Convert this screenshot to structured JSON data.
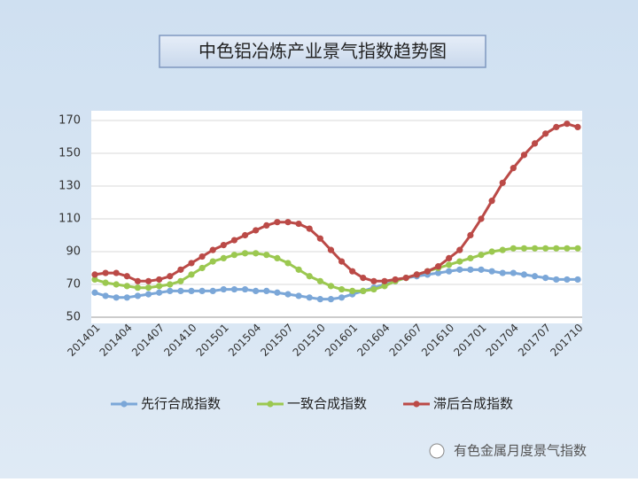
{
  "chart_data": {
    "type": "line",
    "title": "中色铝冶炼产业景气指数趋势图",
    "watermark": "有色金属月度景气指数",
    "categories": [
      "201401",
      null,
      null,
      "201404",
      null,
      null,
      "201407",
      null,
      null,
      "201410",
      null,
      null,
      "201501",
      null,
      null,
      "201504",
      null,
      null,
      "201507",
      null,
      null,
      "201510",
      null,
      null,
      "201601",
      null,
      null,
      "201604",
      null,
      null,
      "201607",
      null,
      null,
      "201610",
      null,
      null,
      "201701",
      null,
      null,
      "201704",
      null,
      null,
      "201707",
      null,
      null,
      "201710"
    ],
    "series": [
      {
        "name": "先行合成指数",
        "color": "#7ba7d8",
        "values": [
          65,
          63,
          62,
          62,
          63,
          64,
          65,
          66,
          66,
          66,
          66,
          66,
          67,
          67,
          67,
          66,
          66,
          65,
          64,
          63,
          62,
          61,
          61,
          62,
          64,
          66,
          68,
          70,
          72,
          74,
          75,
          76,
          77,
          78,
          79,
          79,
          79,
          78,
          77,
          77,
          76,
          75,
          74,
          73,
          73,
          73
        ]
      },
      {
        "name": "一致合成指数",
        "color": "#9bc850",
        "values": [
          73,
          71,
          70,
          69,
          68,
          68,
          69,
          70,
          72,
          76,
          80,
          84,
          86,
          88,
          89,
          89,
          88,
          86,
          83,
          79,
          75,
          72,
          69,
          67,
          66,
          66,
          67,
          69,
          72,
          74,
          76,
          78,
          80,
          82,
          84,
          86,
          88,
          90,
          91,
          92,
          92,
          92,
          92,
          92,
          92,
          92
        ]
      },
      {
        "name": "滞后合成指数",
        "color": "#bb4a47",
        "values": [
          76,
          77,
          77,
          75,
          72,
          72,
          73,
          75,
          79,
          83,
          87,
          91,
          94,
          97,
          100,
          103,
          106,
          108,
          108,
          107,
          104,
          98,
          91,
          84,
          78,
          74,
          72,
          72,
          73,
          74,
          76,
          78,
          81,
          86,
          91,
          100,
          110,
          121,
          132,
          141,
          149,
          156,
          162,
          166,
          168,
          166
        ]
      }
    ],
    "ylim": [
      50,
      170
    ],
    "yticks": [
      50,
      70,
      90,
      110,
      130,
      150,
      170
    ],
    "grid": true
  }
}
